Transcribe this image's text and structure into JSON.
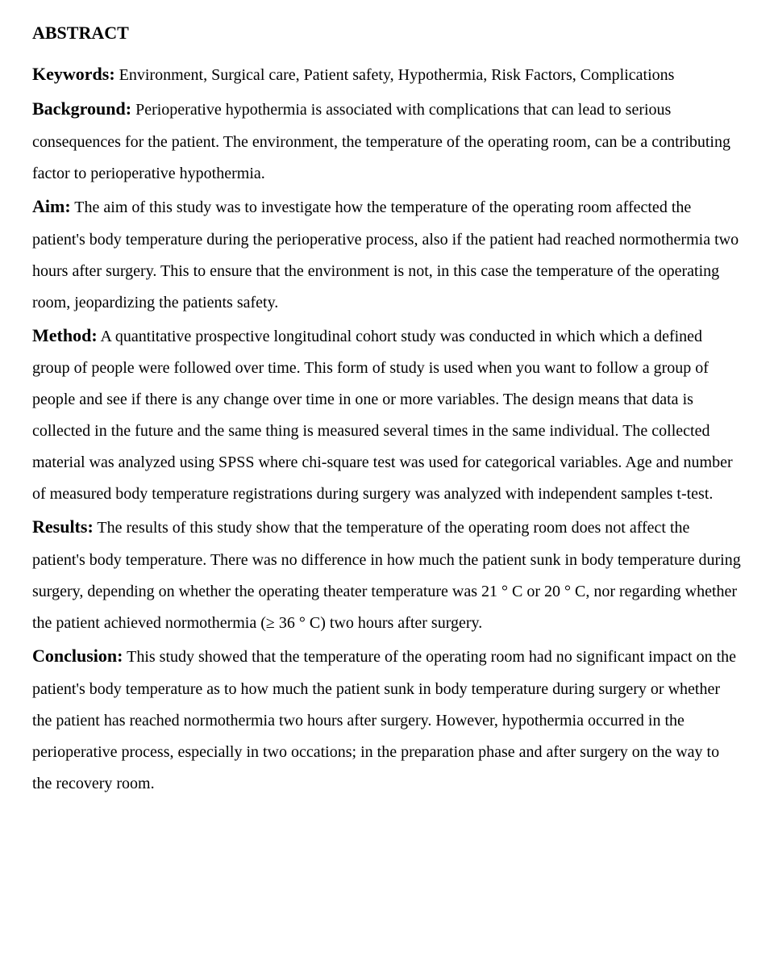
{
  "abstract": {
    "title": "ABSTRACT",
    "keywords_label": "Keywords:",
    "keywords_text": " Environment, Surgical care, Patient safety, Hypothermia, Risk Factors, Complications",
    "background_label": "Background:",
    "background_text": " Perioperative hypothermia is associated with complications that can lead to serious consequences for the patient. The environment, the temperature of the operating room, can be a contributing factor to perioperative hypothermia.",
    "aim_label": "Aim:",
    "aim_text": " The aim of this study was to investigate how the temperature of the operating room affected the patient's body temperature during the perioperative process, also if the patient had reached normothermia two hours after surgery. This to ensure that the environment is not, in this case the temperature of the operating room, jeopardizing the patients safety.",
    "method_label": "Method:",
    "method_text": " A quantitative prospective longitudinal cohort study was conducted in which which a defined group of people were followed over time. This form of study is used when you want to follow a group of people and see if there is any change over time in one or more variables. The design means that data is collected in the future and the same thing is measured several times in the same individual. The collected material was analyzed using SPSS where chi-square test was used for categorical variables. Age and number of measured body temperature registrations during surgery was analyzed with independent samples t-test.",
    "results_label": "Results:",
    "results_text": " The results of this study show that the temperature of the operating room does not affect the patient's body temperature. There was no difference in how much the patient sunk in body temperature during surgery, depending on whether the operating theater temperature was 21 ° C or 20 ° C, nor regarding whether the patient achieved normothermia (≥ 36 ° C) two hours after surgery.",
    "conclusion_label": "Conclusion:",
    "conclusion_text": " This study showed that the temperature of the operating room had no significant impact on the patient's body temperature as to how much the patient sunk in body temperature during surgery or whether the patient has reached normothermia two hours after surgery. However, hypothermia occurred in the perioperative process, especially in two occations; in the preparation phase and after surgery on the way to the recovery room."
  }
}
